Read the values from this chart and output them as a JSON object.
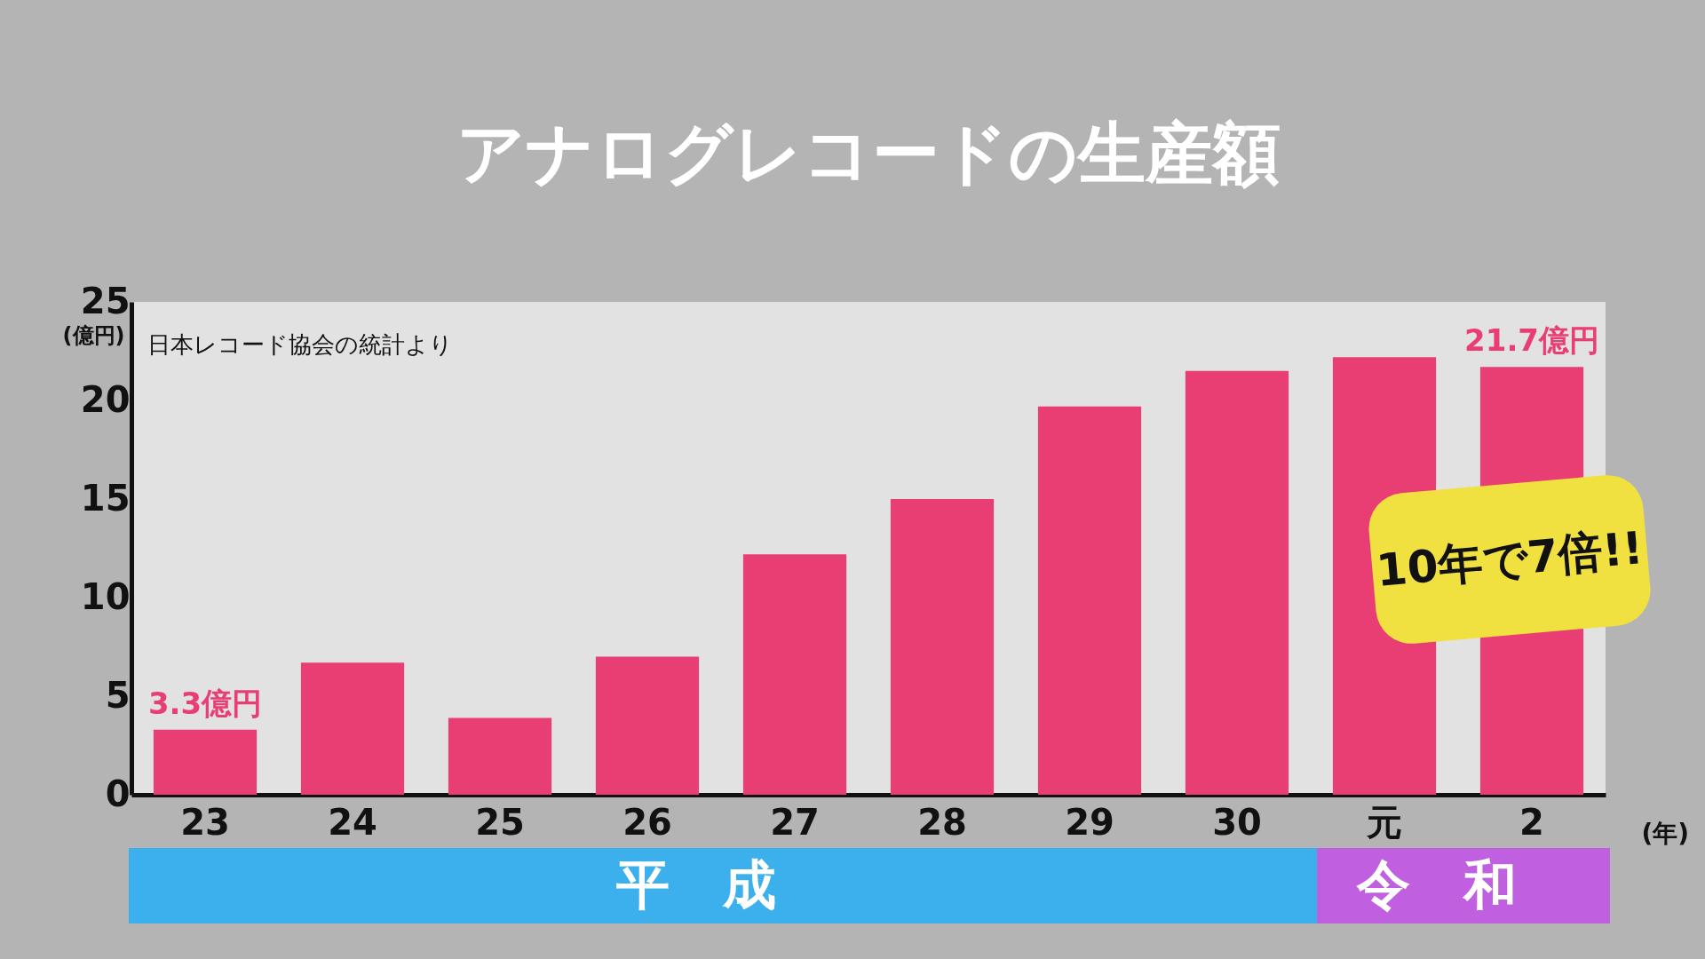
{
  "chart_data": {
    "type": "bar",
    "title": "アナログレコードの生産額",
    "categories": [
      "23",
      "24",
      "25",
      "26",
      "27",
      "28",
      "29",
      "30",
      "元",
      "2"
    ],
    "values": [
      3.3,
      6.7,
      3.9,
      7.0,
      12.2,
      15.0,
      19.7,
      21.5,
      22.2,
      21.7
    ],
    "color": "#e83e74",
    "value_labels": [
      "3.3億円",
      null,
      null,
      null,
      null,
      null,
      null,
      null,
      null,
      "21.7億円"
    ],
    "ylim": [
      0,
      25
    ],
    "yticks": [
      0,
      5,
      10,
      15,
      20,
      25
    ],
    "ylabel": "(億円)",
    "xlabel": "(年)",
    "grid": false,
    "annotations": [
      "日本レコード協会の統計より",
      "10年で7倍!!",
      "平成",
      "令和"
    ]
  }
}
